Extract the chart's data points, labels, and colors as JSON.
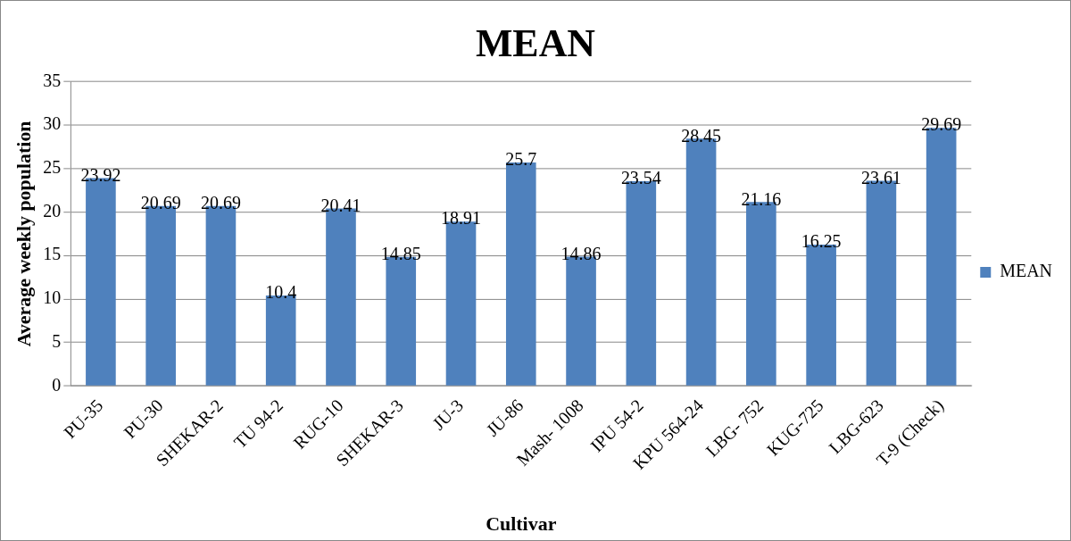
{
  "chart_data": {
    "type": "bar",
    "title": "MEAN",
    "xlabel": "Cultivar",
    "ylabel": "Average weekly population",
    "categories": [
      "PU-35",
      "PU-30",
      "SHEKAR-2",
      "TU 94-2",
      "RUG-10",
      "SHEKAR-3",
      "JU-3",
      "JU-86",
      "Mash- 1008",
      "IPU 54-2",
      "KPU 564-24",
      "LBG- 752",
      "KUG-725",
      "LBG-623",
      "T-9 (Check)"
    ],
    "series": [
      {
        "name": "MEAN",
        "color": "#4f81bd",
        "values": [
          23.92,
          20.69,
          20.69,
          10.4,
          20.41,
          14.85,
          18.91,
          25.7,
          14.86,
          23.54,
          28.45,
          21.16,
          16.25,
          23.61,
          29.69
        ]
      }
    ],
    "ylim": [
      0,
      35
    ],
    "yticks": [
      0,
      5,
      10,
      15,
      20,
      25,
      30,
      35
    ],
    "grid": "y",
    "legend": "right",
    "data_labels": true
  }
}
